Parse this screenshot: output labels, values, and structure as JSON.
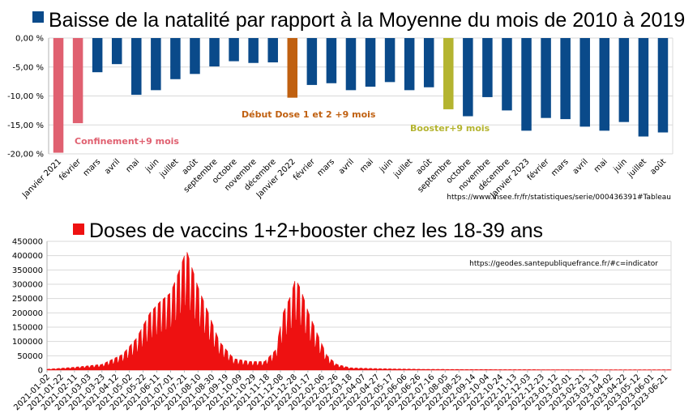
{
  "chart_data": [
    {
      "type": "bar",
      "title": "Baisse de la natalité par rapport à la Moyenne du mois de 2010 à 2019",
      "source": "https://www.insee.fr/fr/statistiques/serie/000436391#Tableau",
      "categories": [
        "Janvier 2021",
        "février",
        "mars",
        "avril",
        "mai",
        "juin",
        "juillet",
        "août",
        "septembre",
        "octobre",
        "novembre",
        "décembre",
        "Janvier 2022",
        "février",
        "mars",
        "avril",
        "mai",
        "juin",
        "juillet",
        "août",
        "septembre",
        "octobre",
        "novembre",
        "décembre",
        "Janvier 2023",
        "février",
        "mars",
        "avril",
        "mai",
        "juin",
        "juillet",
        "août"
      ],
      "values": [
        -19.8,
        -14.7,
        -5.9,
        -4.5,
        -9.8,
        -9.0,
        -7.1,
        -6.2,
        -4.9,
        -4.0,
        -4.3,
        -4.2,
        -10.3,
        -8.1,
        -7.8,
        -9.0,
        -8.4,
        -7.6,
        -9.0,
        -8.5,
        -12.3,
        -13.5,
        -10.2,
        -12.5,
        -16.0,
        -13.8,
        -14.0,
        -15.3,
        -16.0,
        -14.5,
        -17.0,
        -16.3
      ],
      "bar_colors": [
        "#e06070",
        "#e06070",
        "#0a4a8a",
        "#0a4a8a",
        "#0a4a8a",
        "#0a4a8a",
        "#0a4a8a",
        "#0a4a8a",
        "#0a4a8a",
        "#0a4a8a",
        "#0a4a8a",
        "#0a4a8a",
        "#c06010",
        "#0a4a8a",
        "#0a4a8a",
        "#0a4a8a",
        "#0a4a8a",
        "#0a4a8a",
        "#0a4a8a",
        "#0a4a8a",
        "#b4b430",
        "#0a4a8a",
        "#0a4a8a",
        "#0a4a8a",
        "#0a4a8a",
        "#0a4a8a",
        "#0a4a8a",
        "#0a4a8a",
        "#0a4a8a",
        "#0a4a8a",
        "#0a4a8a",
        "#0a4a8a"
      ],
      "ylim": [
        -20,
        0
      ],
      "yticks": [
        "0,00 %",
        "-5,00 %",
        "-10,00 %",
        "-15,00 %",
        "-20,00 %"
      ],
      "legend_color": "#0a4a8a",
      "grid": true,
      "annotations": [
        {
          "text": "Confinement+9 mois",
          "color": "#e06070",
          "category_index": 1
        },
        {
          "text": "Début Dose 1 et 2  +9 mois",
          "color": "#c06010",
          "category_index": 12
        },
        {
          "text": "Booster+9 mois",
          "color": "#b4b430",
          "category_index": 20
        }
      ]
    },
    {
      "type": "area",
      "title": "Doses de vaccins 1+2+booster chez les 18-39 ans",
      "source": "https://geodes.santepubliquefrance.fr/#c=indicator",
      "series_color": "#ee1111",
      "legend_color": "#ee1111",
      "ylim": [
        0,
        450000
      ],
      "yticks": [
        "450000",
        "400000",
        "350000",
        "300000",
        "250000",
        "200000",
        "150000",
        "100000",
        "50000",
        "0"
      ],
      "x_start": "2021-01-02",
      "x_end": "2023-06-30",
      "xticks": [
        "2021-01-02",
        "2021-01-22",
        "2021-02-11",
        "2021-03-03",
        "2021-03-23",
        "2021-04-12",
        "2021-05-02",
        "2021-05-22",
        "2021-06-11",
        "2021-07-01",
        "2021-07-21",
        "2021-08-10",
        "2021-08-30",
        "2021-09-19",
        "2021-10-09",
        "2021-10-29",
        "2021-11-18",
        "2021-12-08",
        "2021-12-28",
        "2022-01-17",
        "2022-02-06",
        "2022-02-26",
        "2022-03-18",
        "2022-04-07",
        "2022-04-27",
        "2022-05-17",
        "2022-06-06",
        "2022-06-26",
        "2022-07-16",
        "2022-08-05",
        "2022-08-25",
        "2022-09-14",
        "2022-10-04",
        "2022-10-24",
        "2022-11-13",
        "2022-12-03",
        "2022-12-23",
        "2023-01-12",
        "2023-02-01",
        "2023-02-21",
        "2023-03-13",
        "2023-04-02",
        "2023-04-22",
        "2023-05-12",
        "2023-06-01",
        "2023-06-21"
      ],
      "x": [
        "2021-01-02",
        "2021-02-11",
        "2021-03-23",
        "2021-04-22",
        "2021-05-12",
        "2021-06-01",
        "2021-06-16",
        "2021-07-01",
        "2021-07-14",
        "2021-07-24",
        "2021-08-10",
        "2021-08-25",
        "2021-09-10",
        "2021-10-01",
        "2021-10-25",
        "2021-11-15",
        "2021-12-01",
        "2021-12-12",
        "2021-12-23",
        "2021-12-30",
        "2022-01-07",
        "2022-01-18",
        "2022-02-01",
        "2022-02-14",
        "2022-02-28",
        "2022-03-20",
        "2022-05-01",
        "2022-07-01",
        "2022-09-01",
        "2023-01-01",
        "2023-06-30"
      ],
      "values": [
        3000,
        10000,
        20000,
        55000,
        110000,
        200000,
        240000,
        270000,
        350000,
        420000,
        290000,
        200000,
        100000,
        40000,
        30000,
        30000,
        70000,
        200000,
        260000,
        320000,
        280000,
        200000,
        120000,
        50000,
        20000,
        8000,
        5000,
        3000,
        2000,
        1500,
        1000
      ],
      "grid": true
    }
  ]
}
